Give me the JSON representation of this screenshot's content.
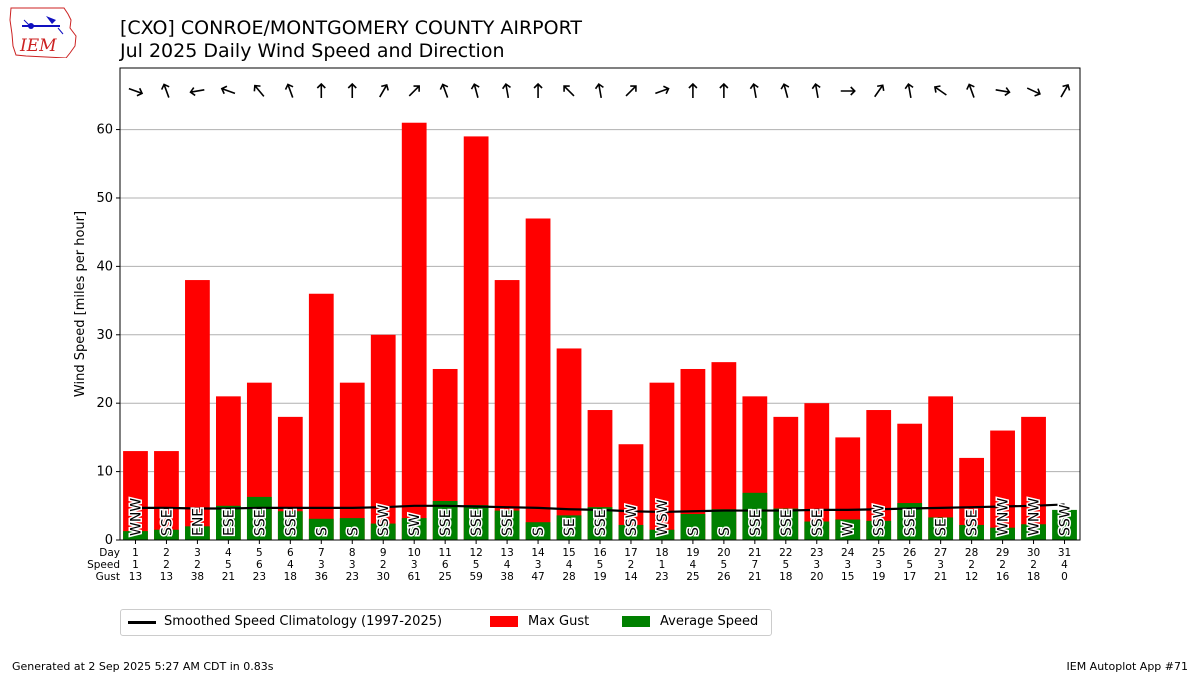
{
  "header": {
    "title_line1": "[CXO] CONROE/MONTGOMERY COUNTY AIRPORT",
    "title_line2": "Jul 2025 Daily Wind Speed and Direction"
  },
  "logo": {
    "text": "IEM"
  },
  "footer": {
    "generated": "Generated at 2 Sep 2025 5:27 AM CDT in 0.83s",
    "app": "IEM Autoplot App #71"
  },
  "colors": {
    "gust": "#ff0000",
    "speed": "#008000",
    "climo": "#000000",
    "grid": "#b0b0b0"
  },
  "chart_data": {
    "type": "bar",
    "ylabel": "Wind Speed [miles per hour]",
    "ylim": [
      0,
      69
    ],
    "yticks": [
      0,
      10,
      20,
      30,
      40,
      50,
      60
    ],
    "grid": "y",
    "table_row_labels": [
      "Day",
      "Speed",
      "Gust"
    ],
    "categories": [
      "1",
      "2",
      "3",
      "4",
      "5",
      "6",
      "7",
      "8",
      "9",
      "10",
      "11",
      "12",
      "13",
      "14",
      "15",
      "16",
      "17",
      "18",
      "19",
      "20",
      "21",
      "22",
      "23",
      "24",
      "25",
      "26",
      "27",
      "28",
      "29",
      "30",
      "31"
    ],
    "series": [
      {
        "name": "Max Gust",
        "values": [
          13,
          13,
          38,
          21,
          23,
          18,
          36,
          23,
          30,
          61,
          25,
          59,
          38,
          47,
          28,
          19,
          14,
          23,
          25,
          26,
          21,
          18,
          20,
          15,
          19,
          17,
          21,
          12,
          16,
          18,
          0
        ]
      },
      {
        "name": "Average Speed",
        "values": [
          1.3,
          1.5,
          2.0,
          5.0,
          6.3,
          4.2,
          3.1,
          3.2,
          2.4,
          3.2,
          5.7,
          5.1,
          4.3,
          2.6,
          3.6,
          4.8,
          2.2,
          1.5,
          3.8,
          4.5,
          6.9,
          4.6,
          2.7,
          3.0,
          2.8,
          5.4,
          3.3,
          2.2,
          1.8,
          2.3,
          4.4
        ]
      },
      {
        "name": "Smoothed Speed Climatology (1997-2025)",
        "values": [
          4.7,
          4.7,
          4.6,
          4.6,
          4.7,
          4.7,
          4.7,
          4.7,
          4.8,
          5.0,
          5.0,
          4.9,
          4.8,
          4.7,
          4.5,
          4.4,
          4.2,
          4.1,
          4.2,
          4.3,
          4.3,
          4.3,
          4.4,
          4.4,
          4.5,
          4.6,
          4.7,
          4.8,
          4.9,
          5.0,
          5.2
        ]
      }
    ],
    "table_speed": [
      "1",
      "2",
      "2",
      "5",
      "6",
      "4",
      "3",
      "3",
      "2",
      "3",
      "6",
      "5",
      "4",
      "3",
      "4",
      "5",
      "2",
      "1",
      "4",
      "5",
      "7",
      "5",
      "3",
      "3",
      "3",
      "5",
      "3",
      "2",
      "2",
      "2",
      "4"
    ],
    "table_gust": [
      "13",
      "13",
      "38",
      "21",
      "23",
      "18",
      "36",
      "23",
      "30",
      "61",
      "25",
      "59",
      "38",
      "47",
      "28",
      "19",
      "14",
      "23",
      "25",
      "26",
      "21",
      "18",
      "20",
      "15",
      "19",
      "17",
      "21",
      "12",
      "16",
      "18",
      "0"
    ],
    "direction_labels": [
      "WNW",
      "SSE",
      "ENE",
      "ESE",
      "SSE",
      "SSE",
      "S",
      "S",
      "SSW",
      "SW",
      "SSE",
      "SSE",
      "SSE",
      "S",
      "SE",
      "SSE",
      "SSW",
      "WSW",
      "S",
      "S",
      "SSE",
      "SSE",
      "SSE",
      "W",
      "SSW",
      "SSE",
      "SE",
      "SSE",
      "WNW",
      "WNW",
      "SSW"
    ],
    "direction_arrows_deg": [
      110,
      -20,
      -100,
      -70,
      -40,
      -20,
      0,
      0,
      30,
      45,
      -20,
      -15,
      -10,
      0,
      -45,
      -10,
      45,
      70,
      0,
      0,
      -10,
      -15,
      -10,
      90,
      35,
      -10,
      -55,
      -20,
      100,
      115,
      30
    ],
    "legend": [
      "Smoothed Speed Climatology (1997-2025)",
      "Max Gust",
      "Average Speed"
    ]
  }
}
